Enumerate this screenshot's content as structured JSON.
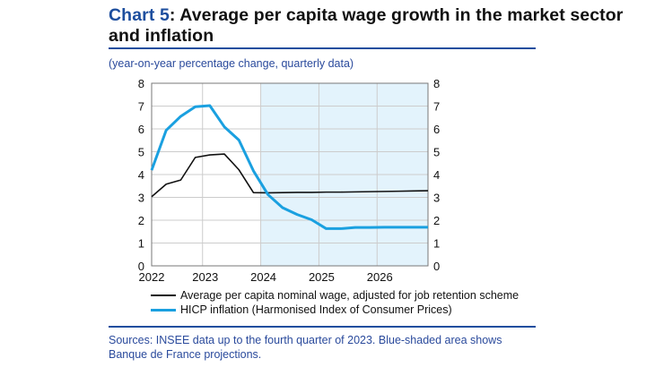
{
  "header": {
    "title_lead": "Chart 5",
    "title_rest": ": Average per capita wage growth in the market sector and inflation",
    "subtitle": "(year-on-year percentage change, quarterly data)"
  },
  "footer": {
    "sources": "Sources: INSEE data up to the fourth quarter of 2023. Blue-shaded area shows Banque de France projections."
  },
  "colors": {
    "accent": "#1d4e9e",
    "wage": "#111111",
    "hicp": "#1aa0e0",
    "projection_shade": "#e3f3fc",
    "grid": "#cccccc"
  },
  "chart_data": {
    "type": "line",
    "x": [
      "2022Q1",
      "2022Q2",
      "2022Q3",
      "2022Q4",
      "2023Q1",
      "2023Q2",
      "2023Q3",
      "2023Q4",
      "2024Q1",
      "2024Q2",
      "2024Q3",
      "2024Q4",
      "2025Q1",
      "2025Q2",
      "2025Q3",
      "2025Q4",
      "2026Q1",
      "2026Q2",
      "2026Q3",
      "2026Q4"
    ],
    "x_tick_labels": [
      "2022",
      "2023",
      "2024",
      "2025",
      "2026"
    ],
    "y_tick_labels": [
      "0",
      "1",
      "2",
      "3",
      "4",
      "5",
      "6",
      "7",
      "8"
    ],
    "ylim": [
      0,
      8
    ],
    "y_axis_sides": "left and right",
    "grid": true,
    "projection_shaded_from": "2024Q1",
    "series": [
      {
        "name": "Average per capita nominal wage, adjusted for job retention scheme",
        "color": "#111111",
        "values": [
          3.03,
          3.58,
          3.76,
          4.75,
          4.86,
          4.9,
          4.21,
          3.21,
          3.2,
          3.21,
          3.22,
          3.22,
          3.23,
          3.23,
          3.24,
          3.25,
          3.26,
          3.27,
          3.28,
          3.29
        ]
      },
      {
        "name": "HICP inflation (Harmonised Index of Consumer Prices)",
        "color": "#1aa0e0",
        "values": [
          4.19,
          5.94,
          6.55,
          6.97,
          7.02,
          6.09,
          5.51,
          4.16,
          3.12,
          2.55,
          2.25,
          2.02,
          1.63,
          1.63,
          1.68,
          1.68,
          1.69,
          1.69,
          1.69,
          1.69
        ]
      }
    ],
    "legend_position": "bottom"
  }
}
